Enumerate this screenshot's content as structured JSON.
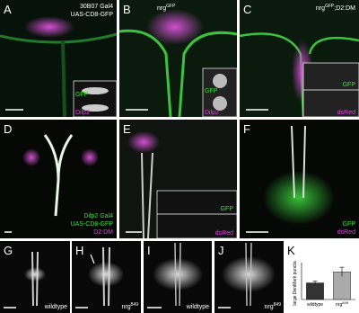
{
  "panels": [
    {
      "label": "A",
      "texts": [
        {
          "text": "30B07 Gal4"
        },
        {
          "text": "UAS-CD8-GFP"
        },
        {
          "text": "GFP"
        },
        {
          "text": "Dilp2"
        }
      ]
    },
    {
      "label": "B",
      "texts": [
        {
          "text": "nrg",
          "sup": "GFP"
        },
        {
          "text": "GFP"
        },
        {
          "text": "Dilp2"
        }
      ]
    },
    {
      "label": "C",
      "texts": [
        {
          "text": "nrg",
          "sup": "GFP",
          "rest": ";D2:DM"
        },
        {
          "text": "GFP"
        },
        {
          "text": "dsRed"
        }
      ]
    },
    {
      "label": "D",
      "texts": [
        {
          "text": "Dilp2 Gal4"
        },
        {
          "text": "UAS-CD8-GFP"
        },
        {
          "text": "D2:DM"
        }
      ]
    },
    {
      "label": "E",
      "texts": [
        {
          "text": "GFP"
        },
        {
          "text": "dsRed"
        }
      ]
    },
    {
      "label": "F",
      "texts": [
        {
          "text": "GFP"
        },
        {
          "text": "dsRed"
        }
      ]
    },
    {
      "label": "G",
      "texts": [
        {
          "text": "wildtype"
        }
      ]
    },
    {
      "label": "H",
      "texts": [
        {
          "text": "nrg",
          "sup": "849"
        }
      ]
    },
    {
      "label": "I",
      "texts": [
        {
          "text": "wildtype"
        }
      ]
    },
    {
      "label": "J",
      "texts": [
        {
          "text": "nrg",
          "sup": "849"
        }
      ]
    }
  ],
  "chart_data": {
    "type": "bar",
    "label": "K",
    "y_label": "large DenMark puncta",
    "categories": [
      {
        "text": "wildtype"
      },
      {
        "text": "nrg",
        "sup": "849"
      }
    ],
    "values": [
      0.9,
      1.5
    ],
    "errors": [
      0.1,
      0.25
    ],
    "colors": [
      "#333333",
      "#aaaaaa"
    ],
    "ylim": [
      0,
      2
    ]
  }
}
